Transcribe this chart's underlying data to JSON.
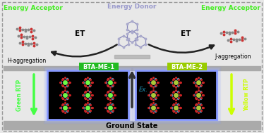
{
  "bg_color": "#e8e8e8",
  "title_energy_donor": "Energy Donor",
  "title_energy_acceptor_left": "Energy Acceptor",
  "title_energy_acceptor_right": "Energy Acceptor",
  "title_energy_donor_color": "#9999cc",
  "title_acceptor_color": "#44ee22",
  "label_h_aggregation": "H-aggregation",
  "label_j_aggregation": "J-aggregation",
  "label_bta_me1": "BTA-ME-1",
  "label_bta_me2": "BTA-ME-2",
  "label_ground_state": "Ground State",
  "label_green_rtp": "Green RTP",
  "label_yellow_rtp": "Yellow RTP",
  "label_ex": "Ex.",
  "label_et": "ET",
  "bta_me1_label_bg": "#22bb22",
  "bta_me2_label_bg": "#99cc00",
  "green_rtp_color": "#44ff44",
  "yellow_rtp_color": "#ccff00",
  "platform_color": "#aaaaaa",
  "ground_state_bar_color": "#aaaaaa",
  "box_glow_color": "#8899ff"
}
